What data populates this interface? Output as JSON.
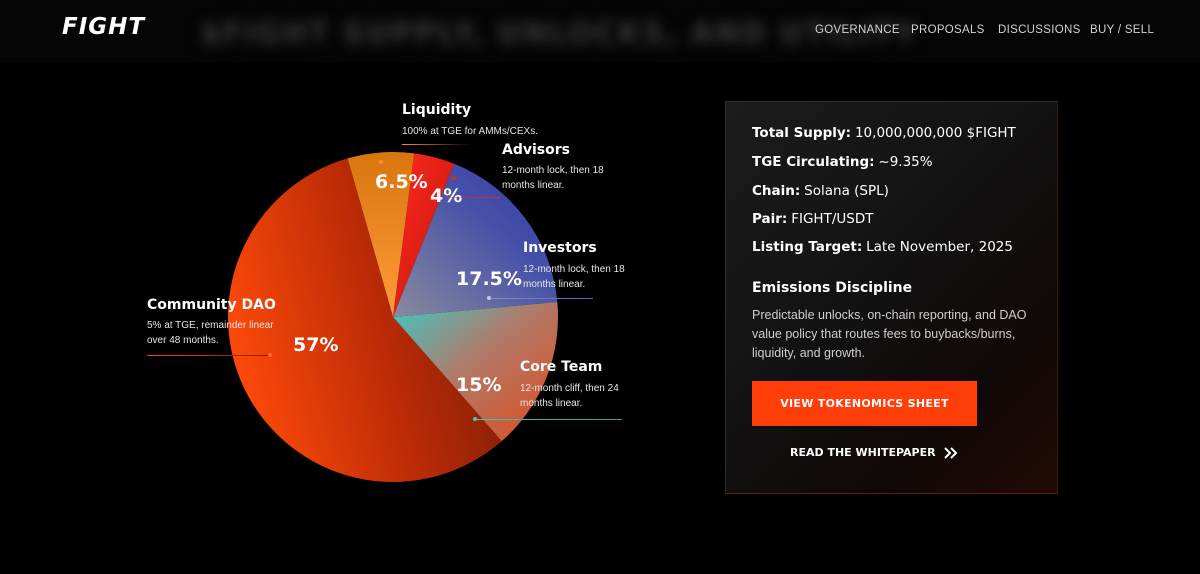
{
  "header": {
    "logo": "FIGHT",
    "page_title": "$FIGHT SUPPLY, UNLOCKS, AND UTILITY",
    "nav": [
      "GOVERNANCE",
      "PROPOSALS",
      "DISCUSSIONS",
      "BUY / SELL"
    ]
  },
  "allocation": {
    "liquidity": {
      "name": "Liquidity",
      "pct_label": "6.5%",
      "value": 6.5,
      "desc": "100% at TGE for AMMs/CEXs."
    },
    "advisors": {
      "name": "Advisors",
      "pct_label": "4%",
      "value": 4,
      "desc_1": "12-month lock, then 18",
      "desc_2": "months linear."
    },
    "investors": {
      "name": "Investors",
      "pct_label": "17.5%",
      "value": 17.5,
      "desc_1": "12-month lock, then 18",
      "desc_2": "months linear."
    },
    "core_team": {
      "name": "Core Team",
      "pct_label": "15%",
      "value": 15,
      "desc_1": "12-month cliff, then 24",
      "desc_2": "months linear."
    },
    "community": {
      "name": "Community DAO",
      "pct_label": "57%",
      "value": 57,
      "desc_1": "5% at TGE, remainder linear",
      "desc_2": "over 48 months."
    }
  },
  "stats": [
    {
      "label": "Total Supply:",
      "value": "10,000,000,000 $FIGHT"
    },
    {
      "label": "TGE Circulating:",
      "value": "~9.35%"
    },
    {
      "label": "Chain:",
      "value": "Solana (SPL)"
    },
    {
      "label": "Pair:",
      "value": "FIGHT/USDT"
    },
    {
      "label": "Listing Target:",
      "value": "Late November, 2025"
    }
  ],
  "emissions": {
    "title": "Emissions Discipline",
    "body": "Predictable unlocks, on-chain reporting, and DAO value policy that routes fees to buybacks/burns, liquidity, and growth."
  },
  "cta": {
    "primary": "VIEW TOKENOMICS SHEET",
    "secondary": "READ THE WHITEPAPER",
    "secondary_icon": "double-chevron-right-icon"
  },
  "colors": {
    "accent": "#ff3e0a",
    "liquidity": "#f5952a",
    "advisors": "#f0241c",
    "investors": "#3f4aa8",
    "core_team": "#b36b55",
    "community": "#ff4a0a"
  }
}
